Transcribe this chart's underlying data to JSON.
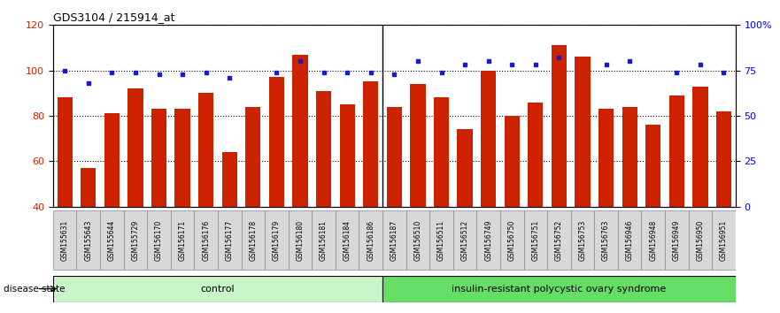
{
  "title": "GDS3104 / 215914_at",
  "samples": [
    "GSM155631",
    "GSM155643",
    "GSM155644",
    "GSM155729",
    "GSM156170",
    "GSM156171",
    "GSM156176",
    "GSM156177",
    "GSM156178",
    "GSM156179",
    "GSM156180",
    "GSM156181",
    "GSM156184",
    "GSM156186",
    "GSM156187",
    "GSM156510",
    "GSM156511",
    "GSM156512",
    "GSM156749",
    "GSM156750",
    "GSM156751",
    "GSM156752",
    "GSM156753",
    "GSM156763",
    "GSM156946",
    "GSM156948",
    "GSM156949",
    "GSM156950",
    "GSM156951"
  ],
  "count_values": [
    88,
    57,
    81,
    92,
    83,
    83,
    90,
    64,
    84,
    97,
    107,
    91,
    85,
    95,
    84,
    94,
    88,
    74,
    100,
    80,
    86,
    111,
    106,
    83,
    84,
    76,
    89,
    93,
    82
  ],
  "percentile_values": [
    75,
    68,
    74,
    74,
    73,
    73,
    74,
    71,
    null,
    74,
    80,
    74,
    74,
    74,
    73,
    80,
    74,
    78,
    80,
    78,
    78,
    82,
    null,
    78,
    80,
    null,
    74,
    78,
    74
  ],
  "group_labels": [
    "control",
    "insulin-resistant polycystic ovary syndrome"
  ],
  "group_counts": [
    14,
    15
  ],
  "bar_color": "#cc2200",
  "percentile_color": "#1a1acc",
  "ylim_left": [
    40,
    120
  ],
  "ylim_right": [
    0,
    100
  ],
  "yticks_left": [
    40,
    60,
    80,
    100,
    120
  ],
  "yticks_right": [
    0,
    25,
    50,
    75,
    100
  ],
  "ytick_labels_right": [
    "0",
    "25",
    "50",
    "75",
    "100%"
  ],
  "bg_color": "#ffffff"
}
